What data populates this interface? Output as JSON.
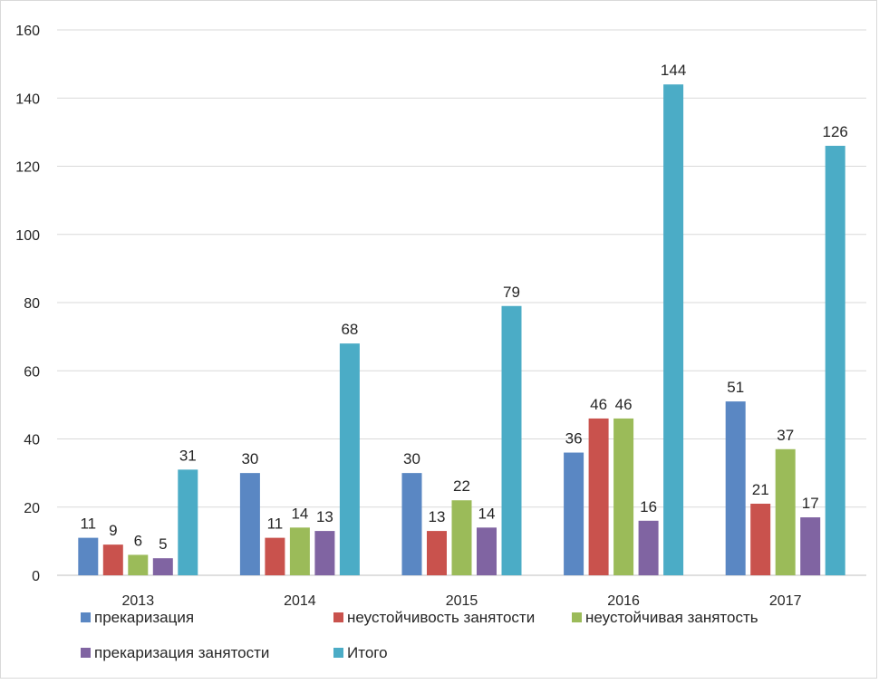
{
  "chart_data": {
    "type": "bar",
    "title": "",
    "xlabel": "",
    "ylabel": "",
    "ylim": [
      0,
      160
    ],
    "ytick_step": 20,
    "grid": true,
    "legend_position": "bottom",
    "categories": [
      "2013",
      "2014",
      "2015",
      "2016",
      "2017"
    ],
    "series": [
      {
        "name": "прекаризация",
        "color": "#5a87c3",
        "values": [
          11,
          30,
          30,
          36,
          51
        ]
      },
      {
        "name": "неустойчивость занятости",
        "color": "#c9524d",
        "values": [
          9,
          11,
          13,
          46,
          21
        ]
      },
      {
        "name": "неустойчивая занятость",
        "color": "#9bbb59",
        "values": [
          6,
          14,
          22,
          46,
          37
        ]
      },
      {
        "name": "прекаризация занятости",
        "color": "#8064a2",
        "values": [
          5,
          13,
          14,
          16,
          17
        ]
      },
      {
        "name": "Итого",
        "color": "#4bacc6",
        "values": [
          31,
          68,
          79,
          144,
          126
        ]
      }
    ]
  }
}
